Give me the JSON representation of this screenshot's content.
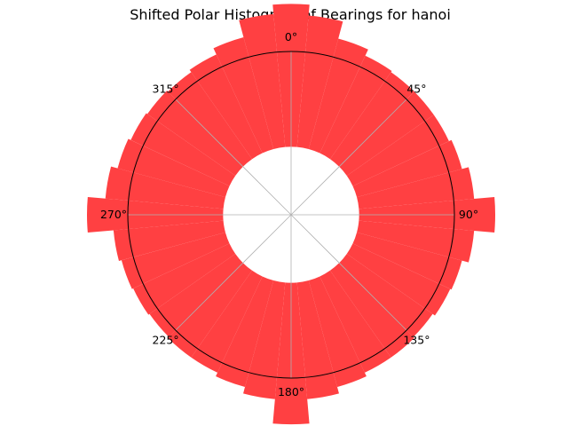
{
  "chart_data": {
    "type": "polar-bar",
    "title": "Shifted Polar Histogram of Bearings for hanoi",
    "theta_direction": "clockwise",
    "theta_zero": "top",
    "theta_tick_labels": [
      "0°",
      "45°",
      "90°",
      "135°",
      "180°",
      "225°",
      "270°",
      "315°"
    ],
    "theta_ticks_deg": [
      0,
      45,
      90,
      135,
      180,
      225,
      270,
      315
    ],
    "bin_width_deg": 10,
    "bin_centers_deg": [
      0,
      10,
      20,
      30,
      40,
      50,
      60,
      70,
      80,
      90,
      100,
      110,
      120,
      130,
      140,
      150,
      160,
      170,
      180,
      190,
      200,
      210,
      220,
      230,
      240,
      250,
      260,
      270,
      280,
      290,
      300,
      310,
      320,
      330,
      340,
      350
    ],
    "values": [
      1.05,
      0.97,
      0.84,
      0.79,
      0.78,
      0.78,
      0.78,
      0.8,
      0.85,
      1.0,
      0.85,
      0.8,
      0.79,
      0.77,
      0.78,
      0.78,
      0.81,
      0.86,
      1.04,
      0.86,
      0.81,
      0.78,
      0.78,
      0.77,
      0.78,
      0.79,
      0.81,
      1.0,
      0.87,
      0.82,
      0.8,
      0.79,
      0.78,
      0.8,
      0.85,
      0.98
    ],
    "bottom_offset": 0.5,
    "rmax": 1.2,
    "grid": true,
    "bar_color": "#ff4042",
    "grid_color": "#b0b0b0"
  }
}
